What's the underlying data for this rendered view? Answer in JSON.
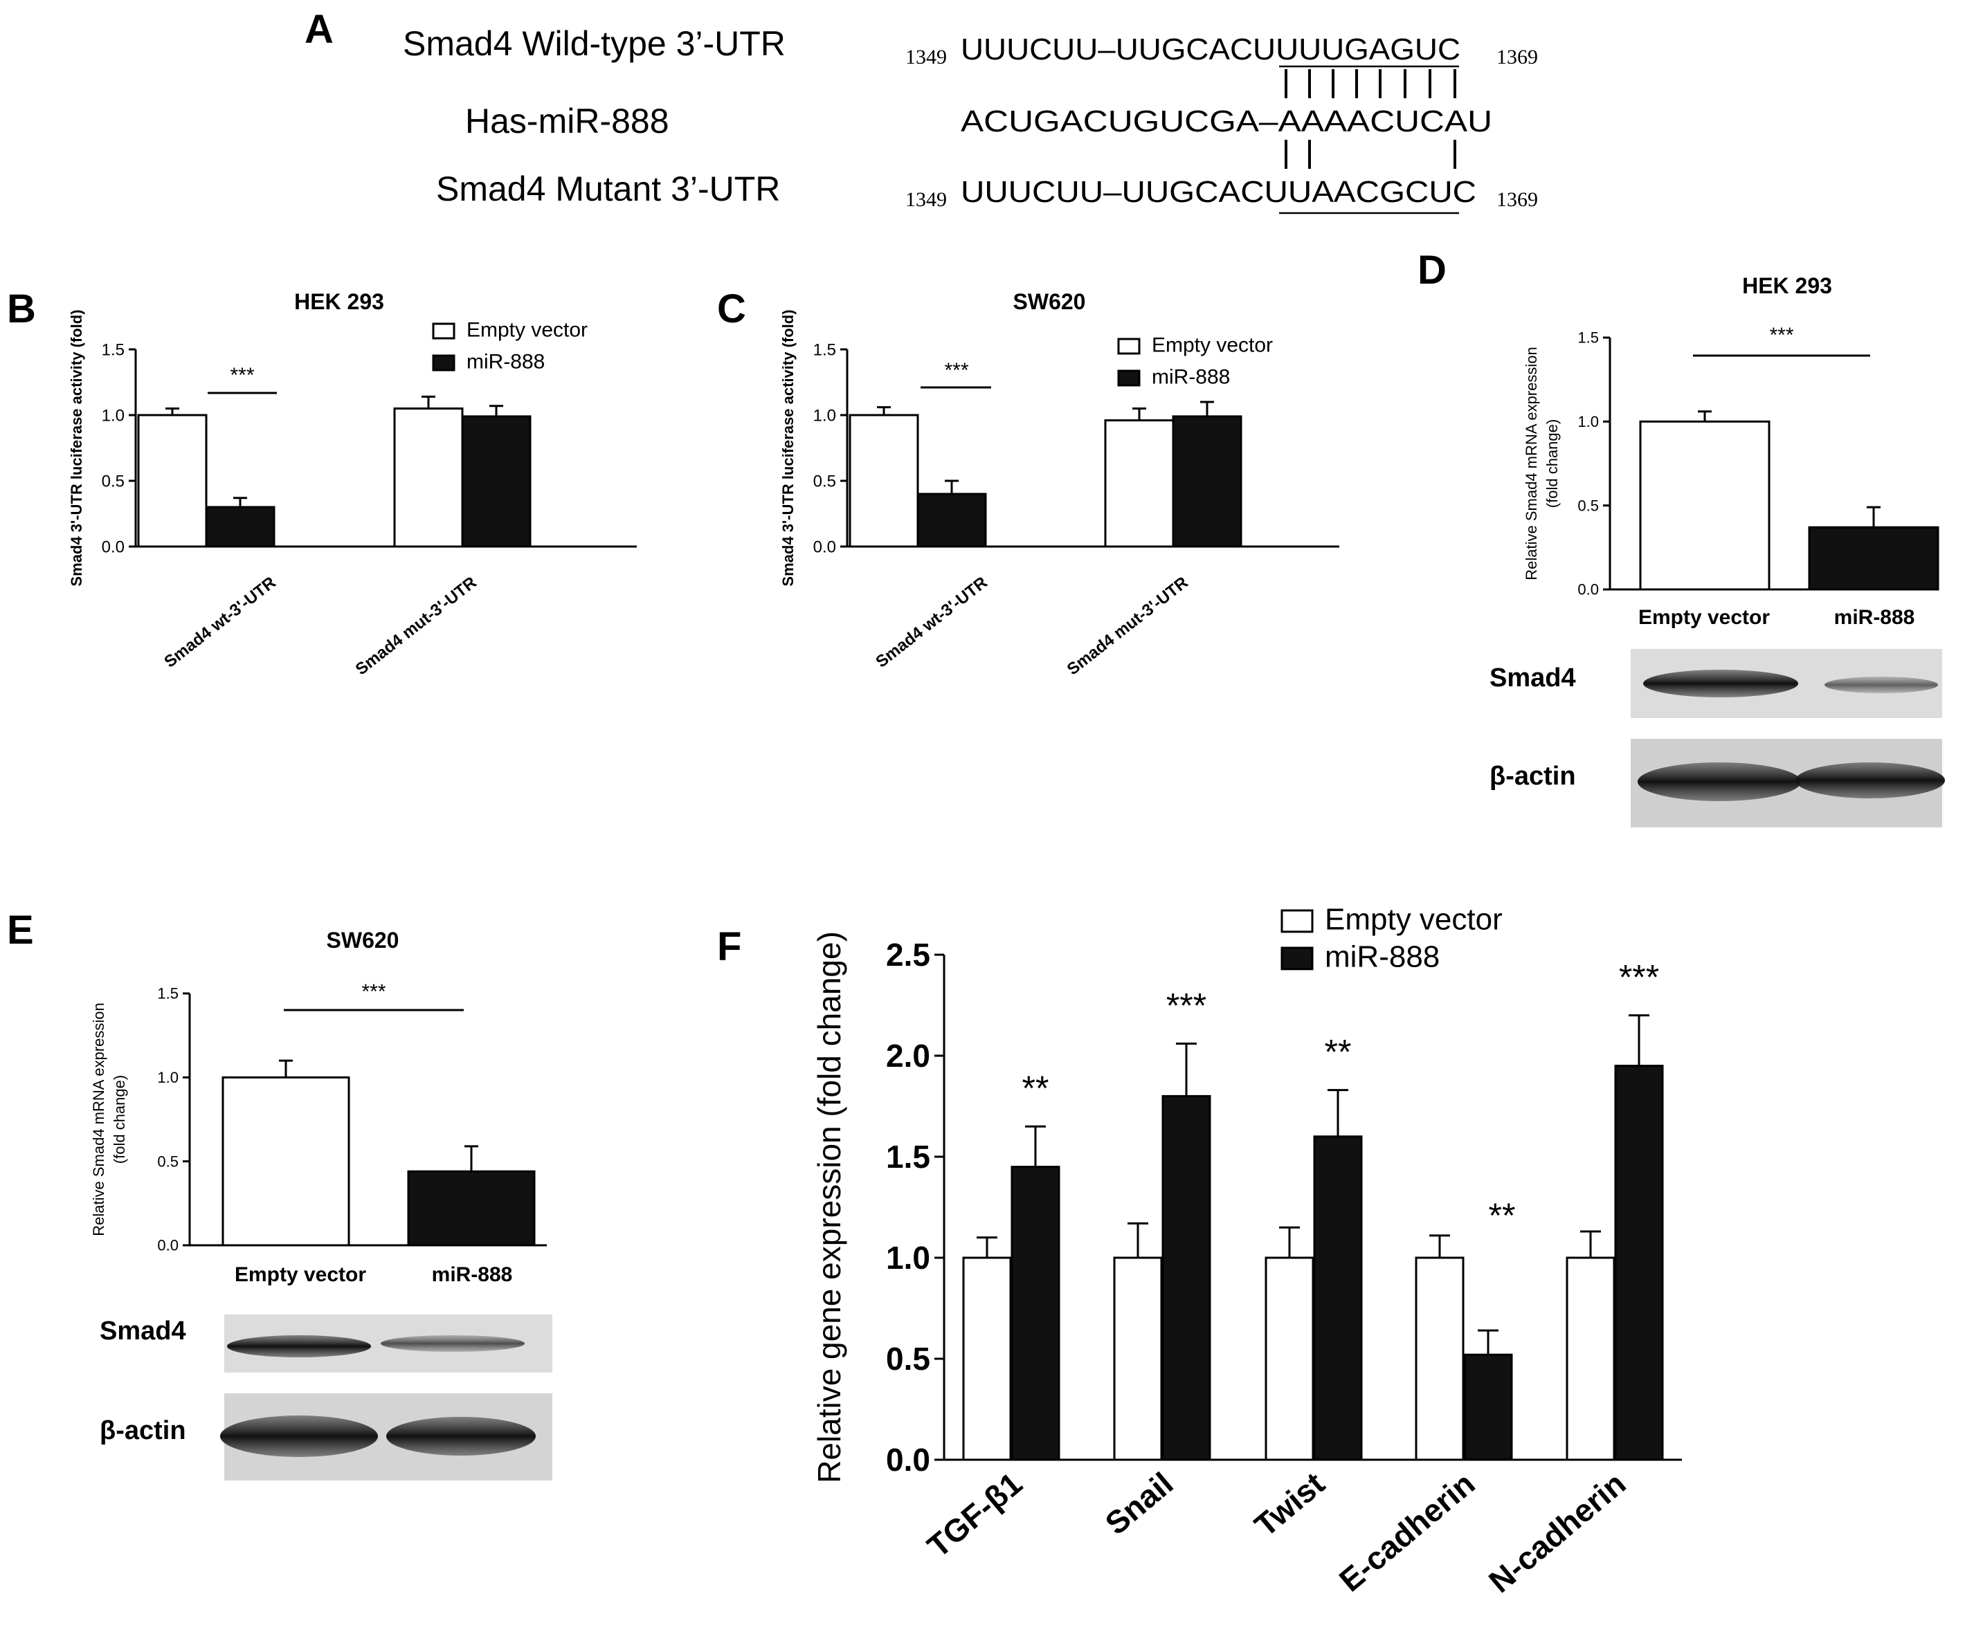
{
  "panelA": {
    "label": "A",
    "rows": [
      {
        "name": "Smad4 Wild-type 3’-UTR",
        "start": "1349",
        "seq": "UUUCUU–UUGCACUUUUGAGUC",
        "end": "1369"
      },
      {
        "name": "Has-miR-888",
        "start": "",
        "seq": "ACUGACUGUCGA–AAAACUCAU",
        "end": ""
      },
      {
        "name": "Smad4 Mutant 3’-UTR",
        "start": "1349",
        "seq": " UUUCUU–UUGCACUUAACGCUC",
        "end": "1369"
      }
    ]
  },
  "legend": {
    "empty_vector": "Empty vector",
    "mir888": "miR-888"
  },
  "blot_labels": {
    "smad4": "Smad4",
    "actin": "β-actin"
  },
  "chart_data": [
    {
      "panel": "B",
      "type": "bar",
      "title": "HEK 293",
      "ylabel": "Smad4 3'-UTR luciferase activity (fold)",
      "ylim": [
        0,
        1.5
      ],
      "yticks": [
        "0.0",
        "0.5",
        "1.0",
        "1.5"
      ],
      "categories": [
        "Smad4 wt-3'-UTR",
        "Smad4 mut-3'-UTR"
      ],
      "series": [
        {
          "name": "Empty vector",
          "values": [
            1.0,
            1.05
          ],
          "errors": [
            0.05,
            0.09
          ]
        },
        {
          "name": "miR-888",
          "values": [
            0.3,
            0.99
          ],
          "errors": [
            0.07,
            0.08
          ]
        }
      ],
      "significance": [
        {
          "category": 0,
          "label": "***"
        }
      ],
      "legend_position": "top-right"
    },
    {
      "panel": "C",
      "type": "bar",
      "title": "SW620",
      "ylabel": "Smad4 3'-UTR luciferase activity (fold)",
      "ylim": [
        0,
        1.5
      ],
      "yticks": [
        "0.0",
        "0.5",
        "1.0",
        "1.5"
      ],
      "categories": [
        "Smad4 wt-3'-UTR",
        "Smad4 mut-3'-UTR"
      ],
      "series": [
        {
          "name": "Empty vector",
          "values": [
            1.0,
            0.96
          ],
          "errors": [
            0.06,
            0.09
          ]
        },
        {
          "name": "miR-888",
          "values": [
            0.4,
            0.99
          ],
          "errors": [
            0.1,
            0.11
          ]
        }
      ],
      "significance": [
        {
          "category": 0,
          "label": "***"
        }
      ],
      "legend_position": "top-right"
    },
    {
      "panel": "D",
      "type": "bar",
      "title": "HEK 293",
      "ylabel": "Relative Smad4 mRNA expression (fold change)",
      "ylabel_lines": [
        "Relative Smad4 mRNA expression",
        "(fold change)"
      ],
      "ylim": [
        0,
        1.5
      ],
      "yticks": [
        "0.0",
        "0.5",
        "1.0",
        "1.5"
      ],
      "categories": [
        "Empty vector",
        "miR-888"
      ],
      "values": [
        1.0,
        0.37
      ],
      "errors": [
        0.06,
        0.12
      ],
      "significance": [
        {
          "label": "***"
        }
      ]
    },
    {
      "panel": "E",
      "type": "bar",
      "title": "SW620",
      "ylabel": "Relative Smad4 mRNA expression (fold change)",
      "ylabel_lines": [
        "Relative Smad4 mRNA expression",
        "(fold change)"
      ],
      "ylim": [
        0,
        1.5
      ],
      "yticks": [
        "0.0",
        "0.5",
        "1.0",
        "1.5"
      ],
      "categories": [
        "Empty vector",
        "miR-888"
      ],
      "values": [
        1.0,
        0.44
      ],
      "errors": [
        0.1,
        0.15
      ],
      "significance": [
        {
          "label": "***"
        }
      ]
    },
    {
      "panel": "F",
      "type": "bar",
      "title": "",
      "ylabel": "Relative gene expression (fold change)",
      "ylim": [
        0,
        2.5
      ],
      "yticks": [
        "0.0",
        "0.5",
        "1.0",
        "1.5",
        "2.0",
        "2.5"
      ],
      "categories": [
        "TGF-β1",
        "Snail",
        "Twist",
        "E-cadherin",
        "N-cadherin"
      ],
      "series": [
        {
          "name": "Empty vector",
          "values": [
            1.0,
            1.0,
            1.0,
            1.0,
            1.0
          ],
          "errors": [
            0.1,
            0.17,
            0.15,
            0.11,
            0.13
          ]
        },
        {
          "name": "miR-888",
          "values": [
            1.45,
            1.8,
            1.6,
            0.52,
            1.95
          ],
          "errors": [
            0.2,
            0.26,
            0.23,
            0.12,
            0.25
          ]
        }
      ],
      "significance": [
        "**",
        "***",
        "**",
        "**",
        "***"
      ],
      "legend_position": "top"
    }
  ]
}
